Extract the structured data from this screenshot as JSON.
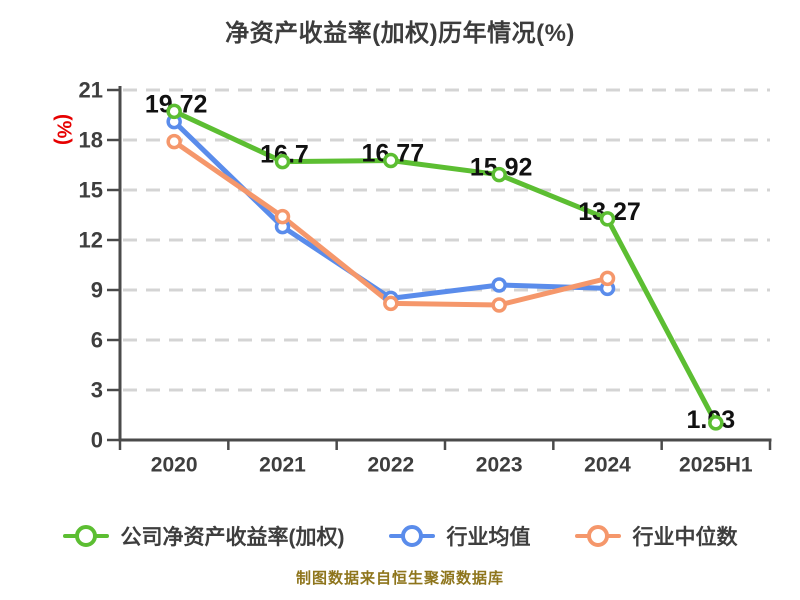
{
  "chart_data": {
    "type": "line",
    "title": "净资产收益率(加权)历年情况(%)",
    "ylabel": "(%)",
    "xlabel": "",
    "categories": [
      "2020",
      "2021",
      "2022",
      "2023",
      "2024",
      "2025H1"
    ],
    "yticks": [
      0,
      3,
      6,
      9,
      12,
      15,
      18,
      21
    ],
    "ylim": [
      0,
      21
    ],
    "grid": "horizontal-dashed",
    "legend_position": "bottom",
    "series": [
      {
        "id": "company-roe",
        "name": "公司净资产收益率(加权)",
        "color": "#5CBE32",
        "values": [
          19.72,
          16.7,
          16.77,
          15.92,
          13.27,
          1.03
        ],
        "point_labels": [
          "19.72",
          "16.7",
          "16.77",
          "15.92",
          "13.27",
          "1.03"
        ]
      },
      {
        "id": "industry-mean",
        "name": "行业均值",
        "color": "#5A8CEB",
        "values": [
          19.1,
          12.8,
          8.5,
          9.3,
          9.1
        ],
        "point_labels": []
      },
      {
        "id": "industry-median",
        "name": "行业中位数",
        "color": "#F5976B",
        "values": [
          17.9,
          13.4,
          8.2,
          8.1,
          9.7
        ],
        "point_labels": []
      }
    ]
  },
  "footer": "制图数据来自恒生聚源数据库",
  "colors": {
    "background": "#FFFFFF",
    "title": "#3C3C3C",
    "axis": "#4A4A4A",
    "grid": "#D4D4D4",
    "tick_label": "#3E3E3E",
    "data_label": "#111111",
    "ylabel": "#E60000",
    "footer": "#8E751C"
  }
}
